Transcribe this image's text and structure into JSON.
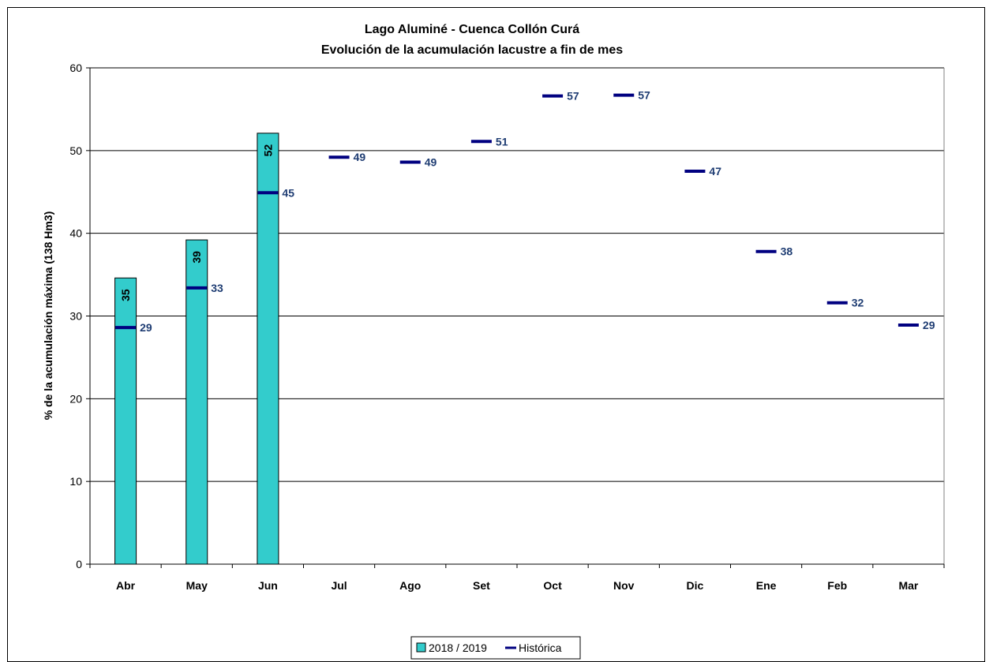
{
  "chart_data": {
    "type": "bar",
    "title": "Lago Aluminé - Cuenca Collón Curá",
    "subtitle": "Evolución de la acumulación lacustre a fin de mes",
    "xlabel": "",
    "ylabel": "% de la acumulación máxima (138 Hm3)",
    "ylim": [
      0,
      60
    ],
    "yticks": [
      0,
      10,
      20,
      30,
      40,
      50,
      60
    ],
    "grid": true,
    "legend_position": "bottom",
    "categories": [
      "Abr",
      "May",
      "Jun",
      "Jul",
      "Ago",
      "Set",
      "Oct",
      "Nov",
      "Dic",
      "Ene",
      "Feb",
      "Mar"
    ],
    "series": [
      {
        "name": "2018 / 2019",
        "type": "bar",
        "color": "#33cccc",
        "values": [
          34.6,
          39.2,
          52.1,
          null,
          null,
          null,
          null,
          null,
          null,
          null,
          null,
          null
        ],
        "labels": [
          "35",
          "39",
          "52",
          null,
          null,
          null,
          null,
          null,
          null,
          null,
          null,
          null
        ]
      },
      {
        "name": "Histórica",
        "type": "marker",
        "color": "#000080",
        "values": [
          28.6,
          33.4,
          44.9,
          49.2,
          48.6,
          51.1,
          56.6,
          56.7,
          47.5,
          37.8,
          31.6,
          28.9
        ],
        "labels": [
          "29",
          "33",
          "45",
          "49",
          "49",
          "51",
          "57",
          "57",
          "47",
          "38",
          "32",
          "29"
        ]
      }
    ]
  }
}
